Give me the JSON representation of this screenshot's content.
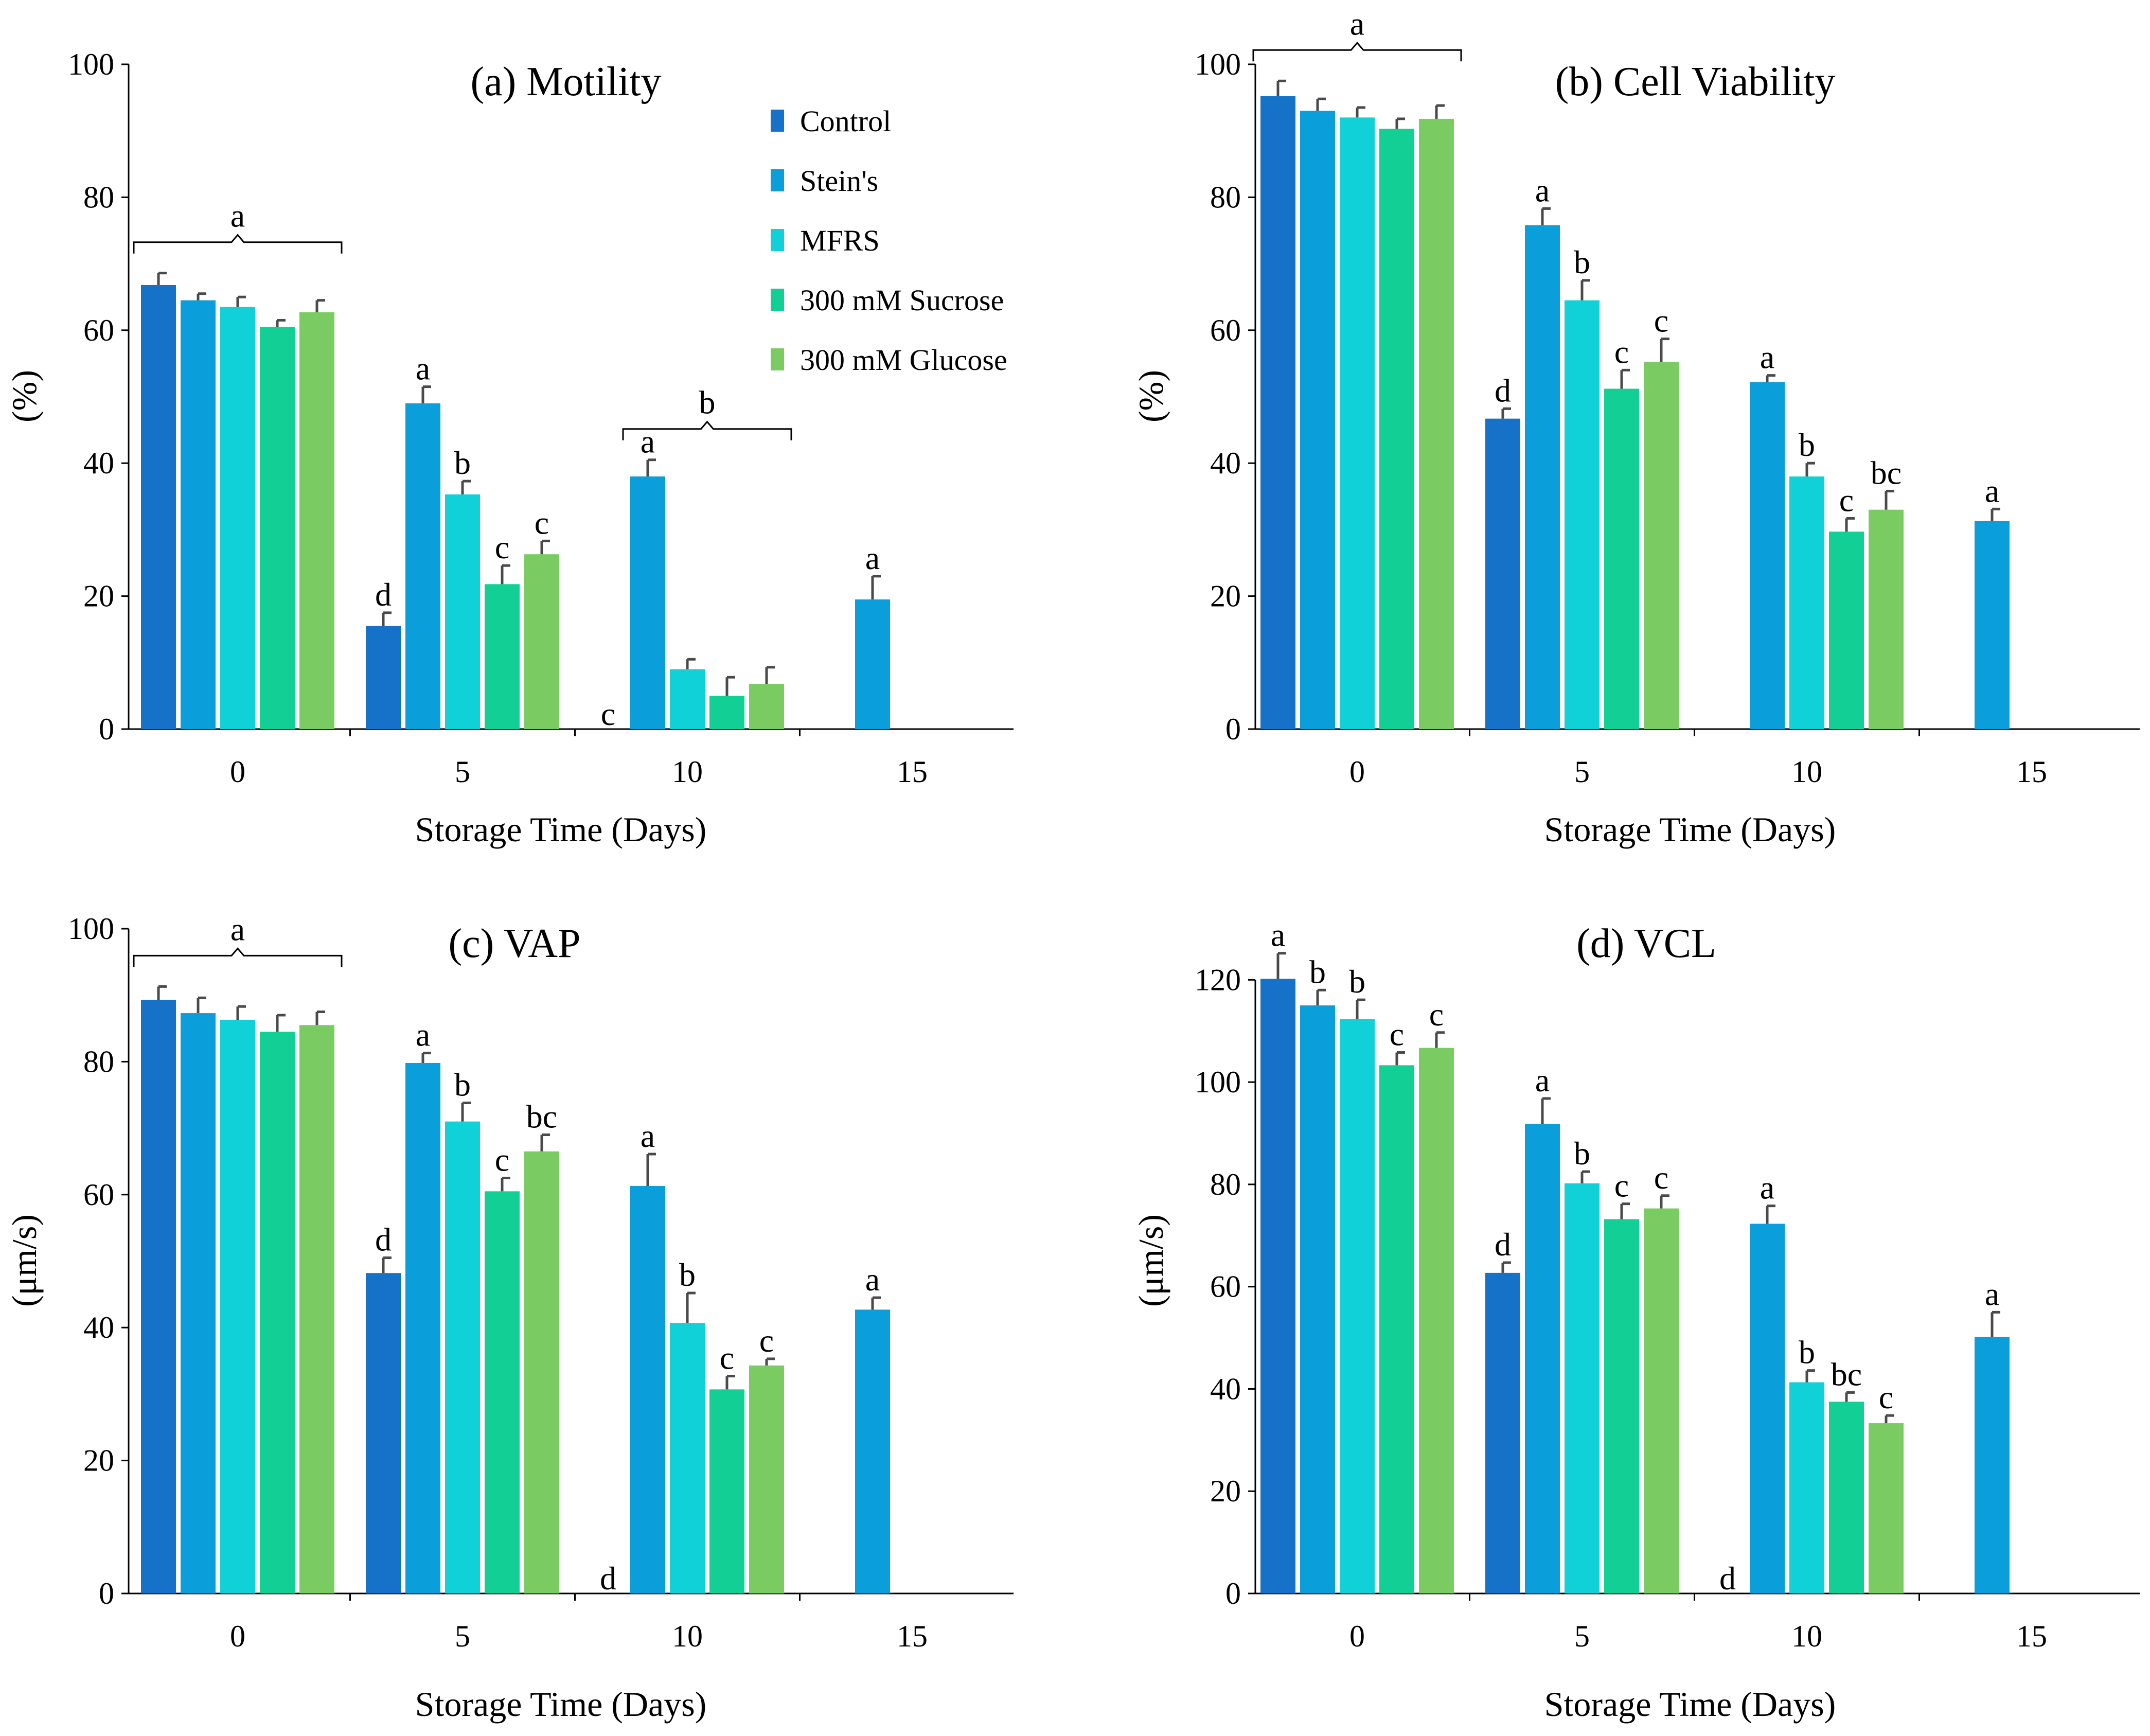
{
  "colors": {
    "Control": "#1672c8",
    "Stein's": "#0a9edb",
    "MFRS": "#10d0d8",
    "300 mM Sucrose": "#12cf95",
    "300 mM Glucose": "#7acb61"
  },
  "legend": [
    "Control",
    "Stein's",
    "MFRS",
    "300 mM Sucrose",
    "300 mM Glucose"
  ],
  "chart_data": [
    {
      "id": "a",
      "type": "bar",
      "title": "(a) Motility",
      "xlabel": "Storage Time (Days)",
      "ylabel": "(%)",
      "ylim": [
        0,
        100
      ],
      "yticks": [
        0,
        20,
        40,
        60,
        80,
        100
      ],
      "categories": [
        "0",
        "5",
        "10",
        "15"
      ],
      "series": [
        {
          "name": "Control",
          "values": [
            66.8,
            15.5,
            null,
            null
          ],
          "errors": [
            1.8,
            2.0,
            null,
            null
          ],
          "letters": [
            "",
            "d",
            "c",
            ""
          ]
        },
        {
          "name": "Stein's",
          "values": [
            64.5,
            49.0,
            38.0,
            19.5
          ],
          "errors": [
            1.0,
            2.5,
            2.5,
            3.5
          ],
          "letters": [
            "",
            "a",
            "a",
            "a"
          ]
        },
        {
          "name": "MFRS",
          "values": [
            63.5,
            35.3,
            9.0,
            null
          ],
          "errors": [
            1.5,
            2.0,
            1.5,
            null
          ],
          "letters": [
            "",
            "b",
            "",
            ""
          ]
        },
        {
          "name": "300 mM Sucrose",
          "values": [
            60.5,
            21.8,
            5.0,
            null
          ],
          "errors": [
            1.0,
            2.8,
            2.8,
            null
          ],
          "letters": [
            "",
            "c",
            "",
            ""
          ]
        },
        {
          "name": "300 mM Glucose",
          "values": [
            62.7,
            26.3,
            6.8,
            null
          ],
          "errors": [
            1.8,
            2.0,
            2.5,
            null
          ],
          "letters": [
            "",
            "c",
            "",
            ""
          ]
        }
      ],
      "group_letters": [
        {
          "category": "0",
          "letter": "a"
        },
        {
          "category": "10",
          "letter": "b"
        }
      ]
    },
    {
      "id": "b",
      "type": "bar",
      "title": "(b) Cell Viability",
      "xlabel": "Storage Time (Days)",
      "ylabel": "(%)",
      "ylim": [
        0,
        100
      ],
      "yticks": [
        0,
        20,
        40,
        60,
        80,
        100
      ],
      "categories": [
        "0",
        "5",
        "10",
        "15"
      ],
      "series": [
        {
          "name": "Control",
          "values": [
            95.2,
            46.7,
            null,
            null
          ],
          "errors": [
            2.3,
            1.5,
            null,
            null
          ],
          "letters": [
            "",
            "d",
            "",
            ""
          ]
        },
        {
          "name": "Stein's",
          "values": [
            93.0,
            75.8,
            52.2,
            31.3
          ],
          "errors": [
            1.8,
            2.5,
            1.0,
            1.8
          ],
          "letters": [
            "",
            "a",
            "a",
            "a"
          ]
        },
        {
          "name": "MFRS",
          "values": [
            92.0,
            64.5,
            38.0,
            null
          ],
          "errors": [
            1.5,
            3.0,
            2.0,
            null
          ],
          "letters": [
            "",
            "b",
            "b",
            ""
          ]
        },
        {
          "name": "300 mM Sucrose",
          "values": [
            90.3,
            51.2,
            29.7,
            null
          ],
          "errors": [
            1.5,
            2.8,
            2.0,
            null
          ],
          "letters": [
            "",
            "c",
            "c",
            ""
          ]
        },
        {
          "name": "300 mM Glucose",
          "values": [
            91.8,
            55.2,
            33.0,
            null
          ],
          "errors": [
            2.0,
            3.5,
            2.8,
            null
          ],
          "letters": [
            "",
            "c",
            "bc",
            ""
          ]
        }
      ],
      "group_letters": [
        {
          "category": "0",
          "letter": "a"
        }
      ]
    },
    {
      "id": "c",
      "type": "bar",
      "title": "(c) VAP",
      "xlabel": "Storage Time (Days)",
      "ylabel": "(μm/s)",
      "ylim": [
        0,
        100
      ],
      "yticks": [
        0,
        20,
        40,
        60,
        80,
        100
      ],
      "categories": [
        "0",
        "5",
        "10",
        "15"
      ],
      "series": [
        {
          "name": "Control",
          "values": [
            89.3,
            48.2,
            null,
            null
          ],
          "errors": [
            2.0,
            2.3,
            null,
            null
          ],
          "letters": [
            "",
            "d",
            "d",
            ""
          ]
        },
        {
          "name": "Stein's",
          "values": [
            87.3,
            79.8,
            61.3,
            42.7
          ],
          "errors": [
            2.3,
            1.5,
            4.8,
            1.8
          ],
          "letters": [
            "",
            "a",
            "a",
            "a"
          ]
        },
        {
          "name": "MFRS",
          "values": [
            86.3,
            71.0,
            40.7,
            null
          ],
          "errors": [
            2.0,
            2.8,
            4.5,
            null
          ],
          "letters": [
            "",
            "b",
            "b",
            ""
          ]
        },
        {
          "name": "300 mM Sucrose",
          "values": [
            84.5,
            60.5,
            30.7,
            null
          ],
          "errors": [
            2.5,
            2.0,
            2.0,
            null
          ],
          "letters": [
            "",
            "c",
            "c",
            ""
          ]
        },
        {
          "name": "300 mM Glucose",
          "values": [
            85.5,
            66.5,
            34.3,
            null
          ],
          "errors": [
            2.0,
            2.5,
            1.0,
            null
          ],
          "letters": [
            "",
            "bc",
            "c",
            ""
          ]
        }
      ],
      "group_letters": [
        {
          "category": "0",
          "letter": "a"
        }
      ]
    },
    {
      "id": "d",
      "type": "bar",
      "title": "(d) VCL",
      "xlabel": "Storage Time (Days)",
      "ylabel": "(μm/s)",
      "ylim": [
        0,
        130
      ],
      "yticks": [
        0,
        20,
        40,
        60,
        80,
        100,
        120
      ],
      "categories": [
        "0",
        "5",
        "10",
        "15"
      ],
      "series": [
        {
          "name": "Control",
          "values": [
            120.2,
            62.7,
            null,
            null
          ],
          "errors": [
            5.0,
            2.0,
            null,
            null
          ],
          "letters": [
            "a",
            "d",
            "d",
            ""
          ]
        },
        {
          "name": "Stein's",
          "values": [
            115.0,
            91.8,
            72.3,
            50.2
          ],
          "errors": [
            3.0,
            5.0,
            3.5,
            4.8
          ],
          "letters": [
            "b",
            "a",
            "a",
            "a"
          ]
        },
        {
          "name": "MFRS",
          "values": [
            112.3,
            80.2,
            41.3,
            null
          ],
          "errors": [
            3.8,
            2.3,
            2.3,
            null
          ],
          "letters": [
            "b",
            "b",
            "b",
            ""
          ]
        },
        {
          "name": "300 mM Sucrose",
          "values": [
            103.3,
            73.2,
            37.5,
            null
          ],
          "errors": [
            2.5,
            3.0,
            1.8,
            null
          ],
          "letters": [
            "c",
            "c",
            "bc",
            ""
          ]
        },
        {
          "name": "300 mM Glucose",
          "values": [
            106.7,
            75.3,
            33.3,
            null
          ],
          "errors": [
            3.0,
            2.5,
            1.5,
            null
          ],
          "letters": [
            "c",
            "c",
            "c",
            ""
          ]
        }
      ],
      "group_letters": []
    }
  ]
}
